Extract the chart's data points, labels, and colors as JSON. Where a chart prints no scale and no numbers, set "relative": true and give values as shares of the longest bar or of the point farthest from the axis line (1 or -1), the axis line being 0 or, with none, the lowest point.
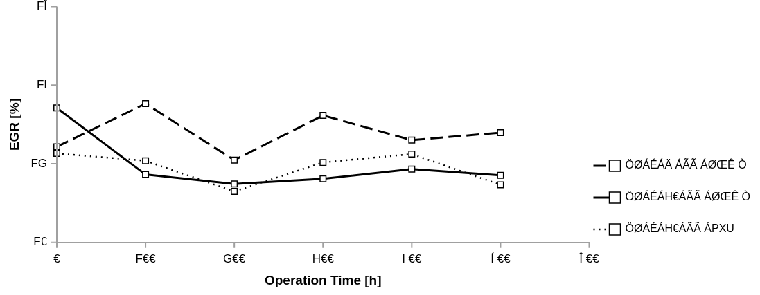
{
  "chart_data": {
    "type": "line",
    "xlabel": "Operation Time [h]",
    "ylabel": "EGR [%]",
    "categories": [
      "€",
      "F€€",
      "G€€",
      "H€€",
      "I €€",
      "Í €€",
      "Î €€"
    ],
    "relative": true,
    "series": [
      {
        "name": "ÖØÁÉÁÄ ÁÃÃ ÁØŒÊ Ò",
        "color": "#000000",
        "line_style": "dashed",
        "values": [
          0.689,
          1,
          0.593,
          0.915,
          0.737,
          0.791,
          null
        ]
      },
      {
        "name": "ÖØÁÉÁH€ÁÃÃ ÁØŒÊ Ò",
        "color": "#000000",
        "line_style": "solid",
        "values": [
          0.969,
          0.489,
          0.421,
          0.458,
          0.528,
          0.483,
          null
        ]
      },
      {
        "name": "ÖØÁÉÁH€ÁÃÃ ÁPXU",
        "color": "#000000",
        "line_style": "dotted",
        "values": [
          0.641,
          0.588,
          0.367,
          0.576,
          0.636,
          0.415,
          null
        ]
      }
    ],
    "annotations": [
      "F€",
      "FG",
      "FI",
      "FÎ"
    ],
    "grid": false,
    "legend": "right",
    "marker": "square"
  }
}
